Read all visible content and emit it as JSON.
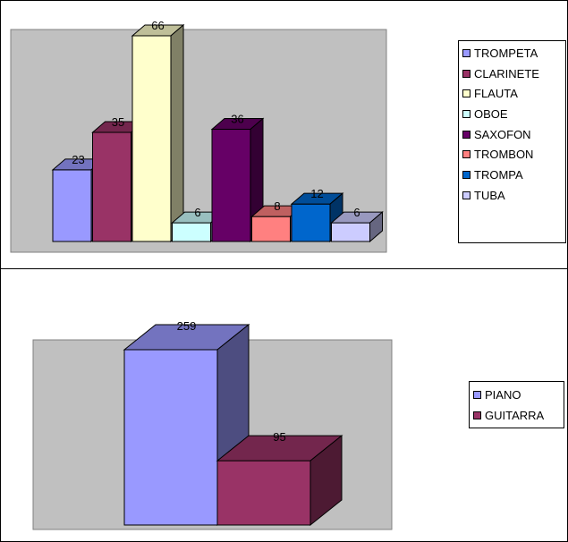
{
  "chart_data": [
    {
      "type": "bar",
      "view": "3d-column",
      "title": "",
      "xlabel": "",
      "ylabel": "",
      "categories": [
        "TROMPETA",
        "CLARINETE",
        "FLAUTA",
        "OBOE",
        "SAXOFON",
        "TROMBON",
        "TROMPA",
        "TUBA"
      ],
      "values": [
        23,
        35,
        66,
        6,
        36,
        8,
        12,
        6
      ],
      "colors": [
        "#9999ff",
        "#993366",
        "#ffffcc",
        "#ccffff",
        "#660066",
        "#ff8080",
        "#0066cc",
        "#ccccff"
      ],
      "data_labels": [
        "23",
        "35",
        "66",
        "6",
        "36",
        "8",
        "12",
        "6"
      ],
      "plot_area_color": "#c0c0c0",
      "grid": false,
      "legend_position": "right",
      "ylim": [
        0,
        66
      ]
    },
    {
      "type": "bar",
      "view": "3d-column",
      "title": "",
      "xlabel": "",
      "ylabel": "",
      "categories": [
        "PIANO",
        "GUITARRA"
      ],
      "values": [
        259,
        95
      ],
      "colors": [
        "#9999ff",
        "#993366"
      ],
      "data_labels": [
        "259",
        "95"
      ],
      "plot_area_color": "#c0c0c0",
      "grid": false,
      "legend_position": "right",
      "ylim": [
        0,
        259
      ]
    }
  ]
}
